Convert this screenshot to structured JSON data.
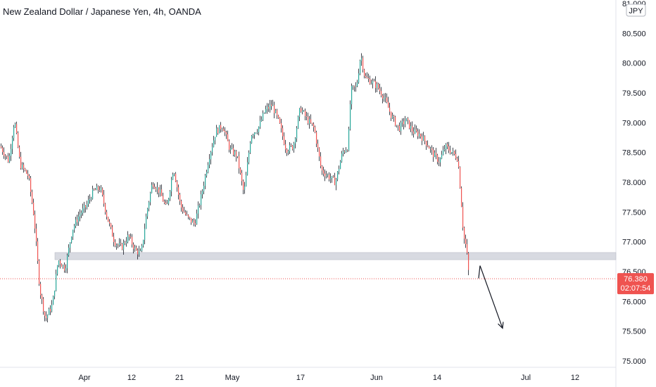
{
  "header": {
    "title": "New Zealand Dollar / Japanese Yen, 4h, OANDA"
  },
  "colors": {
    "up": "#26a69a",
    "down": "#ef5350",
    "wick": "#131722",
    "zone_fill": "#d1d4dc",
    "price_line": "#ef5350",
    "arrow": "#131722",
    "axis_text": "#131722",
    "axis_border": "#e0e3eb"
  },
  "chart_data": {
    "type": "candlestick",
    "currency": "JPY",
    "ylim": [
      74.85,
      81.05
    ],
    "y_ticks": [
      "75.000",
      "75.500",
      "76.000",
      "76.500",
      "77.000",
      "77.500",
      "78.000",
      "78.500",
      "79.000",
      "79.500",
      "80.000",
      "80.500",
      "81.000"
    ],
    "x_ticks": [
      "Apr",
      "12",
      "21",
      "May",
      "17",
      "Jun",
      "14",
      "Jul",
      "12"
    ],
    "current_price": "76.380",
    "countdown": "02:07:54",
    "price_path": [
      [
        0,
        78.6
      ],
      [
        12,
        78.35
      ],
      [
        20,
        79.05
      ],
      [
        28,
        78.3
      ],
      [
        40,
        78.1
      ],
      [
        48,
        77.4
      ],
      [
        56,
        76.2
      ],
      [
        64,
        75.7
      ],
      [
        74,
        75.95
      ],
      [
        82,
        76.7
      ],
      [
        92,
        76.55
      ],
      [
        102,
        77.2
      ],
      [
        112,
        77.45
      ],
      [
        122,
        77.6
      ],
      [
        132,
        77.85
      ],
      [
        142,
        77.9
      ],
      [
        152,
        77.4
      ],
      [
        162,
        77.0
      ],
      [
        172,
        76.9
      ],
      [
        182,
        77.1
      ],
      [
        192,
        76.85
      ],
      [
        200,
        76.8
      ],
      [
        208,
        77.5
      ],
      [
        216,
        78.0
      ],
      [
        226,
        77.85
      ],
      [
        236,
        77.55
      ],
      [
        246,
        78.25
      ],
      [
        256,
        77.6
      ],
      [
        266,
        77.4
      ],
      [
        276,
        77.3
      ],
      [
        286,
        77.8
      ],
      [
        296,
        78.4
      ],
      [
        306,
        78.85
      ],
      [
        316,
        78.95
      ],
      [
        326,
        78.55
      ],
      [
        336,
        78.45
      ],
      [
        346,
        77.8
      ],
      [
        356,
        78.8
      ],
      [
        366,
        78.9
      ],
      [
        376,
        79.2
      ],
      [
        386,
        79.3
      ],
      [
        396,
        79.0
      ],
      [
        406,
        78.55
      ],
      [
        416,
        78.6
      ],
      [
        426,
        79.25
      ],
      [
        436,
        79.05
      ],
      [
        446,
        78.9
      ],
      [
        456,
        78.2
      ],
      [
        466,
        78.1
      ],
      [
        476,
        78.0
      ],
      [
        486,
        78.5
      ],
      [
        494,
        78.6
      ],
      [
        498,
        79.55
      ],
      [
        506,
        79.6
      ],
      [
        512,
        80.15
      ],
      [
        518,
        79.75
      ],
      [
        526,
        79.7
      ],
      [
        536,
        79.6
      ],
      [
        546,
        79.4
      ],
      [
        556,
        79.1
      ],
      [
        566,
        78.9
      ],
      [
        576,
        79.05
      ],
      [
        586,
        78.85
      ],
      [
        596,
        78.8
      ],
      [
        606,
        78.65
      ],
      [
        616,
        78.45
      ],
      [
        624,
        78.35
      ],
      [
        632,
        78.6
      ],
      [
        642,
        78.5
      ],
      [
        650,
        78.4
      ],
      [
        654,
        77.8
      ],
      [
        658,
        77.1
      ],
      [
        662,
        76.9
      ],
      [
        666,
        76.38
      ]
    ],
    "annotations": {
      "support_zone": [
        76.7,
        76.82
      ],
      "projection_arrow": [
        [
          682,
          76.6
        ],
        [
          714,
          75.55
        ]
      ]
    }
  }
}
